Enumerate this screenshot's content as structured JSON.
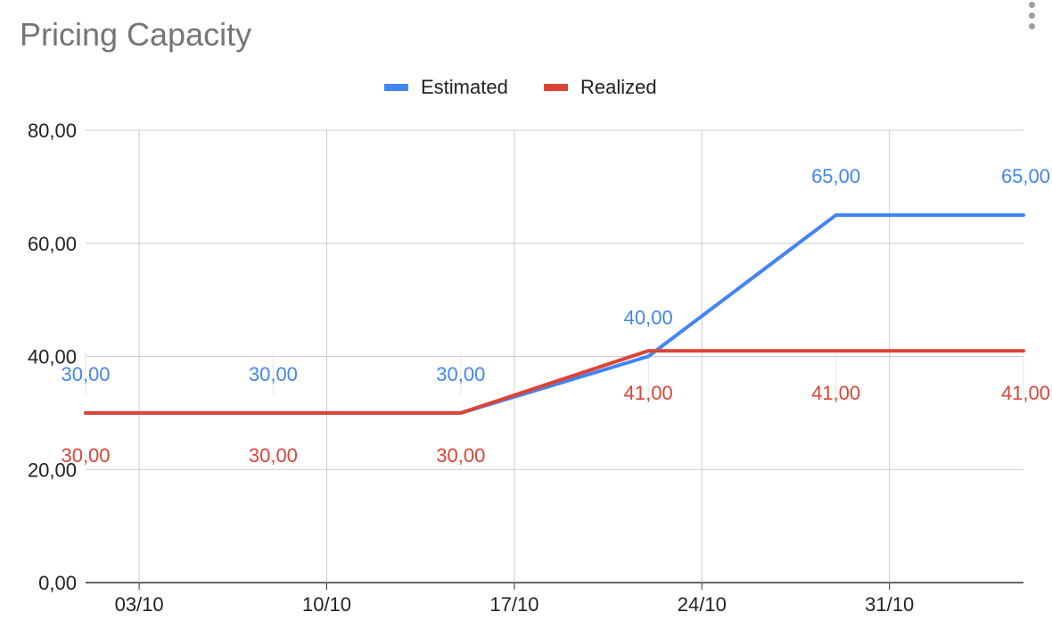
{
  "chart_data": {
    "type": "line",
    "title": "Pricing Capacity",
    "xlabel": "",
    "ylabel": "",
    "x_ticks": [
      "03/10",
      "10/10",
      "17/10",
      "24/10",
      "31/10"
    ],
    "x_tick_dates": [
      "2021-10-03",
      "2021-10-10",
      "2021-10-17",
      "2021-10-24",
      "2021-10-31"
    ],
    "x": [
      "2021-10-01",
      "2021-10-08",
      "2021-10-15",
      "2021-10-22",
      "2021-10-29",
      "2021-11-05"
    ],
    "xlim": [
      "2021-10-01",
      "2021-11-05"
    ],
    "ylim": [
      0,
      80
    ],
    "y_ticks": [
      "0,00",
      "20,00",
      "40,00",
      "60,00",
      "80,00"
    ],
    "y_tick_values": [
      0,
      20,
      40,
      60,
      80
    ],
    "grid": true,
    "legend": "top",
    "series": [
      {
        "name": "Estimated",
        "color": "#4285f4",
        "values": [
          30,
          30,
          30,
          40,
          65,
          65
        ],
        "labels": [
          "30,00",
          "30,00",
          "30,00",
          "40,00",
          "65,00",
          "65,00"
        ]
      },
      {
        "name": "Realized",
        "color": "#db4437",
        "values": [
          30,
          30,
          30,
          41,
          41,
          41
        ],
        "labels": [
          "30,00",
          "30,00",
          "30,00",
          "41,00",
          "41,00",
          "41,00"
        ]
      }
    ]
  },
  "menu": {
    "icon": "more-vert-icon"
  }
}
